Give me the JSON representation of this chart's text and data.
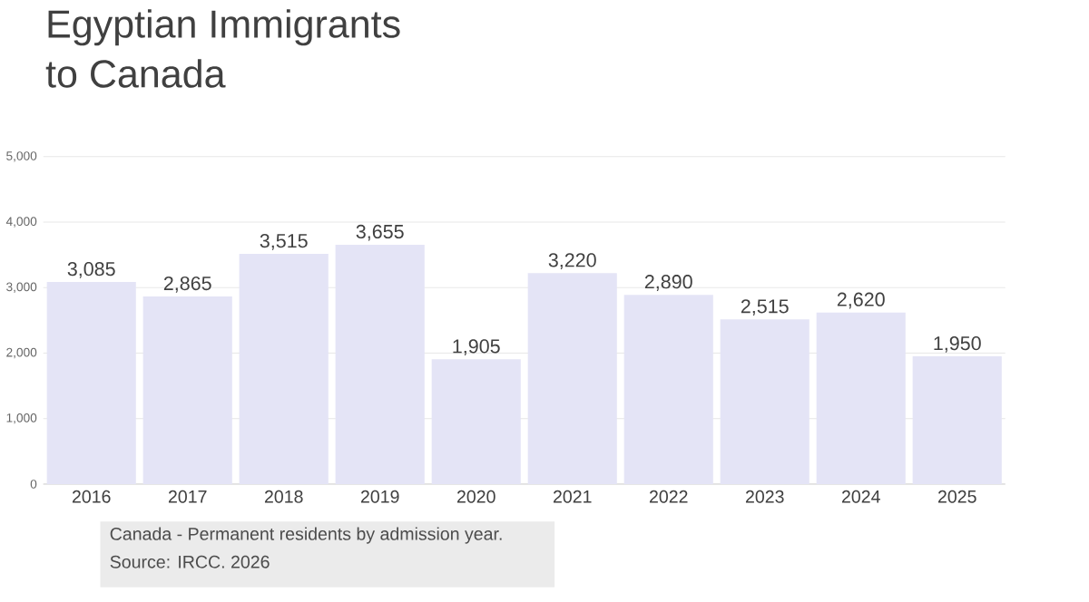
{
  "chart_data": {
    "type": "bar",
    "title": "Egyptian Immigrants",
    "subtitle": "to Canada",
    "categories": [
      "2016",
      "2017",
      "2018",
      "2019",
      "2020",
      "2021",
      "2022",
      "2023",
      "2024",
      "2025"
    ],
    "values": [
      3085,
      2865,
      3515,
      3655,
      1905,
      3220,
      2890,
      2515,
      2620,
      1950
    ],
    "value_labels": [
      "3,085",
      "2,865",
      "3,515",
      "3,655",
      "1,905",
      "3,220",
      "2,890",
      "2,515",
      "2,620",
      "1,950"
    ],
    "color": "#e4e4f6",
    "ylim": [
      0,
      5000
    ],
    "yticks": [
      0,
      {
        "value": 1000,
        "label": "1,000"
      },
      {
        "value": 2000,
        "label": "2,000"
      },
      {
        "value": 3000,
        "label": "3,000"
      },
      {
        "value": 4000,
        "label": "4,000"
      },
      {
        "value": 5000,
        "label": "5,000"
      }
    ],
    "grid": "y",
    "annotations": [
      "Canada - Permanent residents by admission year.",
      "Source: IRCC. 2026"
    ]
  }
}
